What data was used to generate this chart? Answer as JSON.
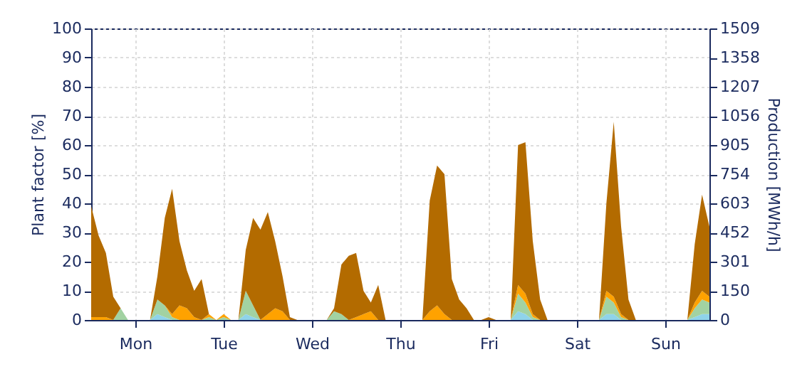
{
  "chart_data": {
    "type": "area",
    "stacked": true,
    "ylabel": "Plant factor [%]",
    "y2label": "Production [MWh/h]",
    "categories": [
      null,
      null,
      null,
      null,
      null,
      null,
      "Mon",
      null,
      null,
      null,
      null,
      null,
      null,
      null,
      null,
      null,
      null,
      null,
      "Tue",
      null,
      null,
      null,
      null,
      null,
      null,
      null,
      null,
      null,
      null,
      null,
      "Wed",
      null,
      null,
      null,
      null,
      null,
      null,
      null,
      null,
      null,
      null,
      null,
      "Thu",
      null,
      null,
      null,
      null,
      null,
      null,
      null,
      null,
      null,
      null,
      null,
      "Fri",
      null,
      null,
      null,
      null,
      null,
      null,
      null,
      null,
      null,
      null,
      null,
      "Sat",
      null,
      null,
      null,
      null,
      null,
      null,
      null,
      null,
      null,
      null,
      null,
      "Sun",
      null,
      null,
      null,
      null,
      null,
      null
    ],
    "series": [
      {
        "color": "#8fd3ea",
        "values": [
          0,
          0,
          0,
          0,
          0,
          0,
          0,
          0,
          0,
          2,
          1,
          0,
          0,
          0,
          0,
          0,
          0,
          0,
          0,
          0,
          0,
          2,
          1,
          0,
          0,
          0,
          0,
          0,
          0,
          0,
          0,
          0,
          0,
          0,
          0,
          0,
          0,
          0,
          0,
          0,
          0,
          0,
          0,
          0,
          0,
          0,
          0,
          0,
          0,
          0,
          0,
          0,
          0,
          0,
          0,
          0,
          0,
          0,
          3,
          2,
          0,
          0,
          0,
          0,
          0,
          0,
          0,
          0,
          0,
          0,
          2,
          2,
          0,
          0,
          0,
          0,
          0,
          0,
          0,
          0,
          0,
          0,
          1,
          2,
          2
        ]
      },
      {
        "color": "#a2d2a2",
        "values": [
          0,
          0,
          0,
          0,
          4,
          0,
          0,
          0,
          0,
          5,
          4,
          1,
          0,
          0,
          0,
          0,
          1,
          0,
          1,
          0,
          0,
          8,
          4,
          0,
          0,
          0,
          0,
          0,
          0,
          0,
          0,
          0,
          0,
          3,
          2,
          0,
          0,
          0,
          0,
          0,
          0,
          0,
          0,
          0,
          0,
          0,
          0,
          0,
          0,
          0,
          0,
          0,
          0,
          0,
          0,
          0,
          0,
          0,
          6,
          4,
          1,
          0,
          0,
          0,
          0,
          0,
          0,
          0,
          0,
          0,
          6,
          4,
          1,
          0,
          0,
          0,
          0,
          0,
          0,
          0,
          0,
          0,
          3,
          5,
          4
        ]
      },
      {
        "color": "#ffa200",
        "values": [
          1,
          1,
          1,
          0,
          0,
          0,
          0,
          0,
          0,
          0,
          0,
          1,
          5,
          4,
          1,
          0,
          1,
          0,
          1,
          0,
          0,
          0,
          0,
          0,
          2,
          4,
          3,
          0,
          0,
          0,
          0,
          0,
          0,
          0,
          0,
          0,
          1,
          2,
          3,
          0,
          0,
          0,
          0,
          0,
          0,
          0,
          3,
          5,
          2,
          0,
          0,
          0,
          0,
          0,
          0,
          0,
          0,
          0,
          3,
          3,
          1,
          0,
          0,
          0,
          0,
          0,
          0,
          0,
          0,
          0,
          2,
          2,
          1,
          0,
          0,
          0,
          0,
          0,
          0,
          0,
          0,
          0,
          2,
          3,
          2
        ]
      },
      {
        "color": "#b36b00",
        "values": [
          38,
          28,
          22,
          8,
          0,
          0,
          0,
          0,
          0,
          8,
          30,
          43,
          22,
          13,
          9,
          14,
          0,
          0,
          0,
          0,
          0,
          14,
          30,
          31,
          35,
          23,
          12,
          1,
          0,
          0,
          0,
          0,
          0,
          1,
          17,
          22,
          22,
          8,
          3,
          12,
          0,
          0,
          0,
          0,
          0,
          0,
          38,
          48,
          48,
          14,
          7,
          4,
          0,
          0,
          1,
          0,
          0,
          0,
          48,
          52,
          25,
          7,
          0,
          0,
          0,
          0,
          0,
          0,
          0,
          0,
          30,
          60,
          30,
          7,
          0,
          0,
          0,
          0,
          0,
          0,
          0,
          0,
          20,
          33,
          24
        ]
      }
    ],
    "ylim": [
      0,
      100
    ],
    "yticks": [
      0,
      10,
      20,
      30,
      40,
      50,
      60,
      70,
      80,
      90,
      100
    ],
    "y2lim": [
      0,
      1509
    ],
    "y2ticks": [
      0,
      150,
      301,
      452,
      603,
      754,
      905,
      1056,
      1207,
      1358,
      1509
    ],
    "grid": true,
    "legend": false
  }
}
